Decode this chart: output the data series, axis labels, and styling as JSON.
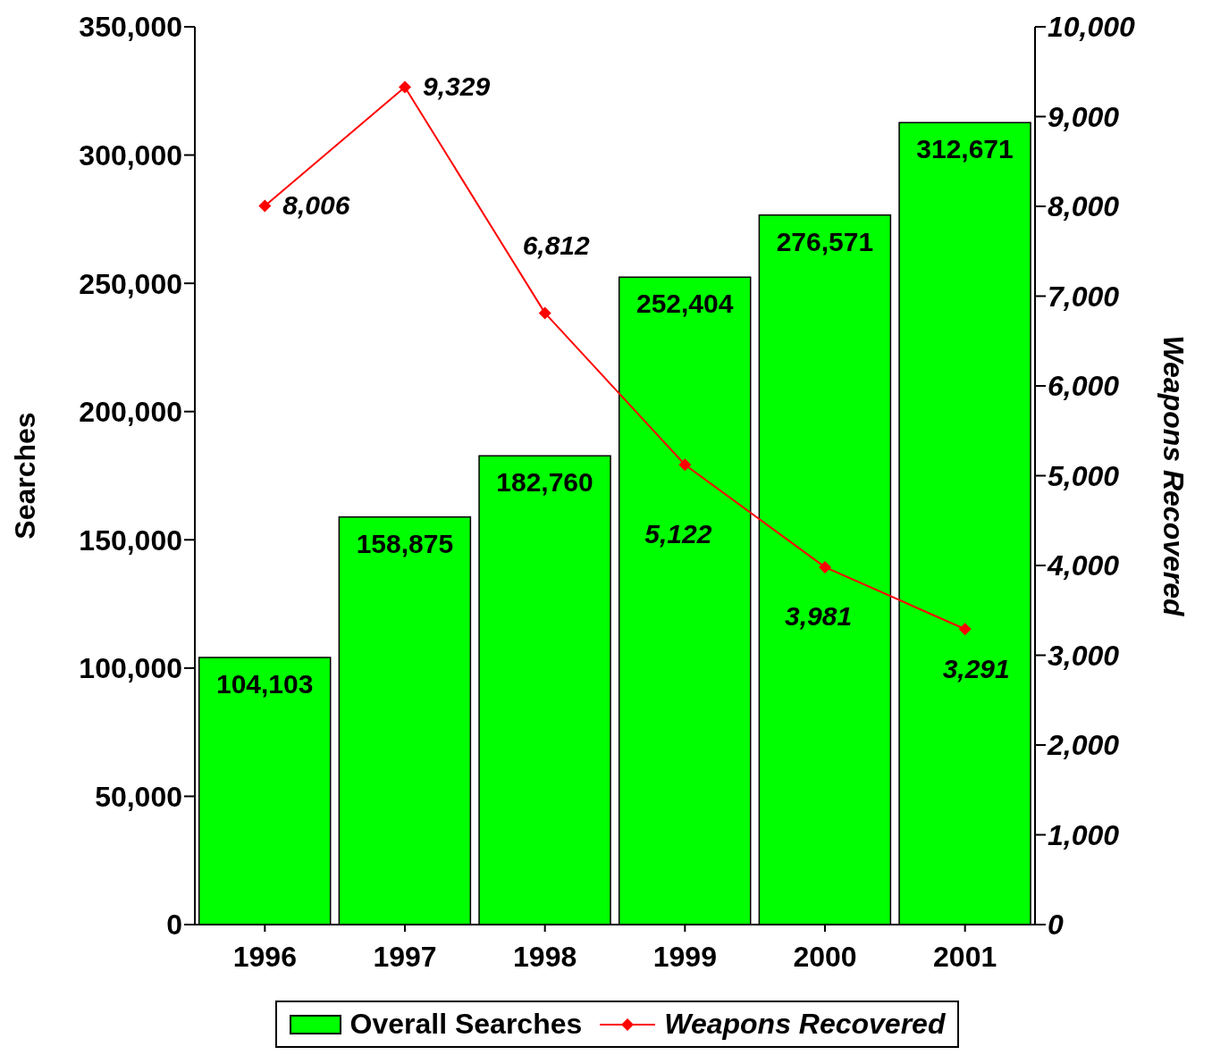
{
  "chart_data": {
    "type": "bar",
    "categories": [
      "1996",
      "1997",
      "1998",
      "1999",
      "2000",
      "2001"
    ],
    "series": [
      {
        "name": "Overall Searches",
        "color": "#00ff00",
        "values": [
          104103,
          158875,
          182760,
          252404,
          276571,
          312671
        ],
        "value_labels": [
          "104,103",
          "158,875",
          "182,760",
          "252,404",
          "276,571",
          "312,671"
        ]
      },
      {
        "name": "Weapons Recovered",
        "type": "line",
        "axis": "y2",
        "color": "#ff0000",
        "values": [
          8006,
          9329,
          6812,
          5122,
          3981,
          3291
        ],
        "value_labels": [
          "8,006",
          "9,329",
          "6,812",
          "5,122",
          "3,981",
          "3,291"
        ]
      }
    ],
    "ylabel": "Searches",
    "y2label": "Weapons Recovered",
    "ylim": [
      0,
      350000
    ],
    "yticks": [
      {
        "value": 0,
        "label": "0"
      },
      {
        "value": 50000,
        "label": "50,000"
      },
      {
        "value": 100000,
        "label": "100,000"
      },
      {
        "value": 150000,
        "label": "150,000"
      },
      {
        "value": 200000,
        "label": "200,000"
      },
      {
        "value": 250000,
        "label": "250,000"
      },
      {
        "value": 300000,
        "label": "300,000"
      },
      {
        "value": 350000,
        "label": "350,000"
      }
    ],
    "y2lim": [
      0,
      10000
    ],
    "y2ticks": [
      {
        "value": 0,
        "label": "0"
      },
      {
        "value": 1000,
        "label": "1,000"
      },
      {
        "value": 2000,
        "label": "2,000"
      },
      {
        "value": 3000,
        "label": "3,000"
      },
      {
        "value": 4000,
        "label": "4,000"
      },
      {
        "value": 5000,
        "label": "5,000"
      },
      {
        "value": 6000,
        "label": "6,000"
      },
      {
        "value": 7000,
        "label": "7,000"
      },
      {
        "value": 8000,
        "label": "8,000"
      },
      {
        "value": 9000,
        "label": "9,000"
      },
      {
        "value": 10000,
        "label": "10,000"
      }
    ],
    "grid": false,
    "legend": "bottom",
    "marker": "diamond",
    "line_style": "solid"
  }
}
